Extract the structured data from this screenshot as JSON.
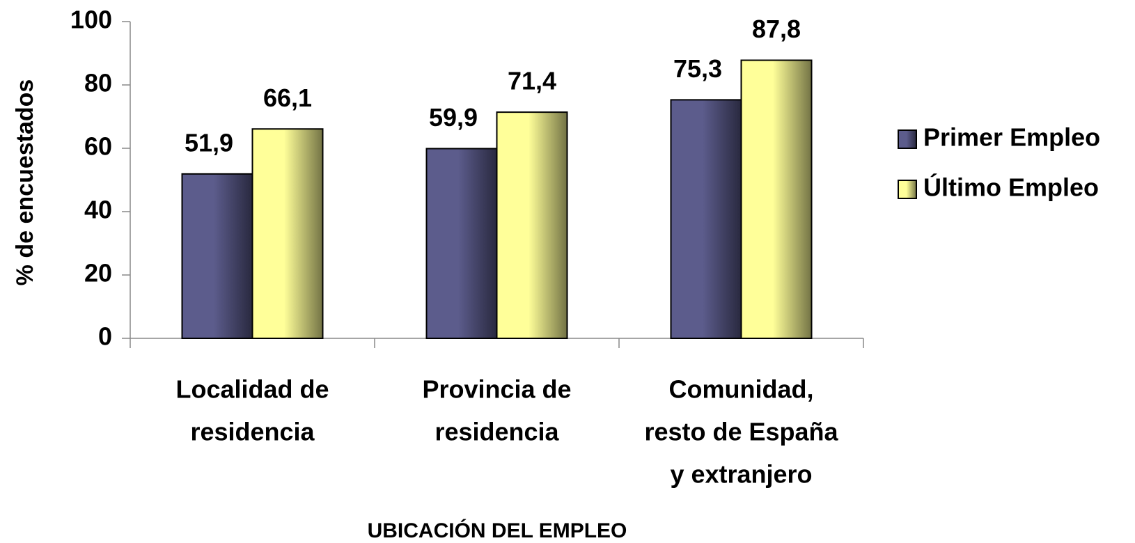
{
  "chart_data": {
    "type": "bar",
    "x_label": "UBICACIÓN DEL EMPLEO",
    "y_label": "% de encuestados",
    "categories": [
      [
        "Localidad de",
        "residencia"
      ],
      [
        "Provincia de",
        "residencia"
      ],
      [
        "Comunidad,",
        "resto de España",
        "y extranjero"
      ]
    ],
    "series": [
      {
        "name": "Primer Empleo",
        "color": "#5c5c8c",
        "values": [
          51.9,
          59.9,
          75.3
        ],
        "value_labels": [
          "51,9",
          "59,9",
          "75,3"
        ]
      },
      {
        "name": "Último Empleo",
        "color": "#ffff99",
        "values": [
          66.1,
          71.4,
          87.8
        ],
        "value_labels": [
          "66,1",
          "71,4",
          "87,8"
        ]
      }
    ],
    "ylim": [
      0,
      100
    ],
    "yticks": [
      0,
      20,
      40,
      60,
      80,
      100
    ],
    "legend": "right"
  }
}
